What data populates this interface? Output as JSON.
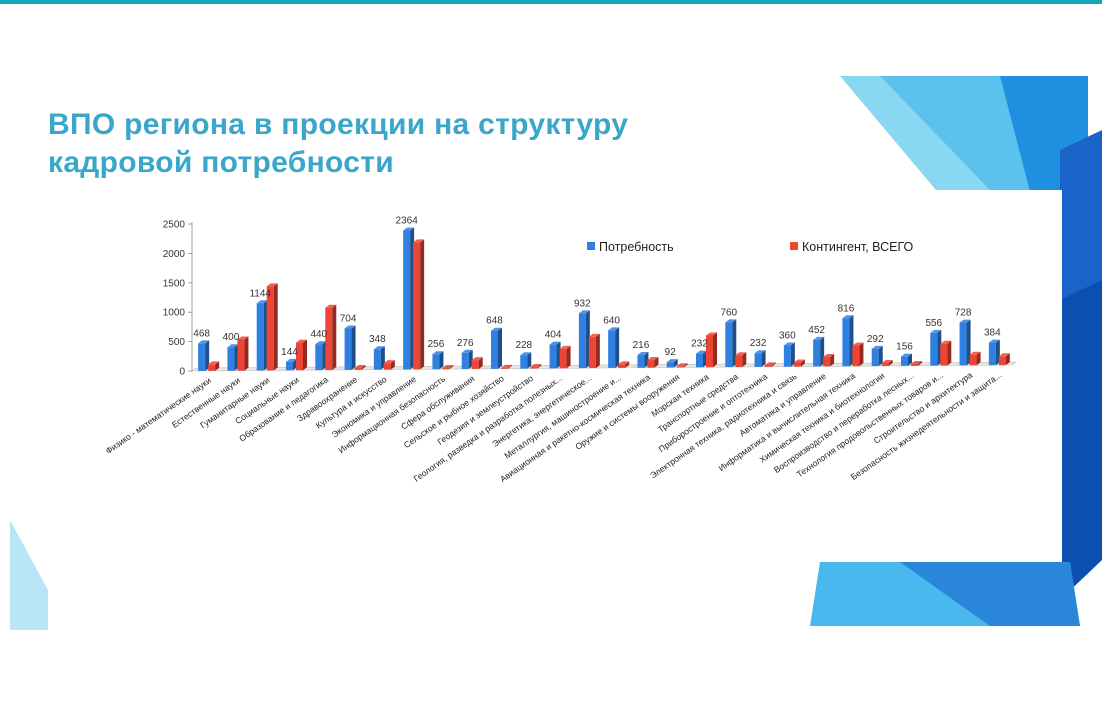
{
  "title_lines": [
    "ВПО региона в проекции на структуру",
    "кадровой потребности"
  ],
  "chart_data": {
    "type": "bar",
    "title": "ВПО региона в проекции на структуру кадровой потребности",
    "xlabel": "",
    "ylabel": "",
    "ylim": [
      0,
      2500
    ],
    "yticks": [
      0,
      500,
      1000,
      1500,
      2000,
      2500
    ],
    "grid": false,
    "legend_position": "top-right",
    "categories": [
      "Физико - математические науки",
      "Естественные науки",
      "Гуманитарные науки",
      "Социальные науки",
      "Образование и педагогика",
      "Здравоохранение",
      "Культура и искусство",
      "Экономика и управление",
      "Информационная безопасность",
      "Сфера обслуживания",
      "Сельское и рыбное хозяйство",
      "Геодезия и землеустройство",
      "Геология, разведка и разработка полезных...",
      "Энергетика, энергетическое...",
      "Металлургия, машиностроение и...",
      "Авиационная и ракетно-космическая техника",
      "Оружие и системы вооружения",
      "Морская техника",
      "Транспортные средства",
      "Приборостроение и оптотехника",
      "Электронная техника, радиотехника и связь",
      "Автоматика и управление",
      "Информатика и вычислительная техника",
      "Химическая техника и биотехнологии",
      "Воспроизводство и переработка лесных...",
      "Технология продовольственных товаров и...",
      "Строительство и архитектура",
      "Безопасность жизнедеятельности и защита..."
    ],
    "series": [
      {
        "name": "Потребность",
        "color": "#2f80e0",
        "values": [
          468,
          400,
          1144,
          144,
          440,
          704,
          348,
          2364,
          256,
          276,
          648,
          228,
          404,
          932,
          640,
          216,
          92,
          232,
          760,
          232,
          360,
          452,
          816,
          292,
          156,
          556,
          728,
          384
        ],
        "labels": [
          "468",
          "400",
          "1144",
          "144",
          "440",
          "704",
          "348",
          "2364",
          "256",
          "276",
          "648",
          "228",
          "404",
          "932",
          "640",
          "216",
          "92",
          "232",
          "760",
          "232",
          "360",
          "452",
          "816",
          "292",
          "156",
          "556",
          "728",
          "384"
        ]
      },
      {
        "name": "Контингент, ВСЕГО",
        "color": "#ee4433",
        "values": [
          110,
          530,
          1430,
          470,
          1060,
          30,
          110,
          2160,
          20,
          150,
          15,
          25,
          330,
          530,
          60,
          130,
          20,
          540,
          200,
          25,
          70,
          160,
          350,
          50,
          30,
          370,
          180,
          150
        ]
      }
    ]
  }
}
